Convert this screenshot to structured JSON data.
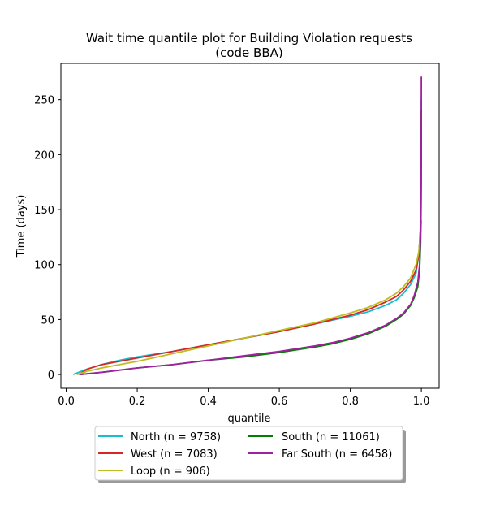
{
  "chart_data": {
    "type": "line",
    "title_line1": "Wait time quantile plot for Building Violation  requests",
    "title_line2": "(code BBA)",
    "xlabel": "quantile",
    "ylabel": "Time (days)",
    "xlim": [
      -0.015,
      1.05
    ],
    "ylim": [
      -12.5,
      283
    ],
    "xticks": [
      0.0,
      0.2,
      0.4,
      0.6,
      0.8,
      1.0
    ],
    "xtick_labels": [
      "0.0",
      "0.2",
      "0.4",
      "0.6",
      "0.8",
      "1.0"
    ],
    "yticks": [
      0,
      50,
      100,
      150,
      200,
      250
    ],
    "ytick_labels": [
      "0",
      "50",
      "100",
      "150",
      "200",
      "250"
    ],
    "grid": false,
    "legend_position": "below-center",
    "series": [
      {
        "name": "North (n = 9758)",
        "color": "#17becf",
        "x": [
          0.02,
          0.05,
          0.1,
          0.15,
          0.2,
          0.3,
          0.4,
          0.5,
          0.6,
          0.7,
          0.8,
          0.85,
          0.9,
          0.93,
          0.95,
          0.97,
          0.985,
          0.993,
          0.997,
          0.999,
          1.0
        ],
        "y": [
          0,
          4,
          9,
          13,
          16,
          21,
          27,
          33,
          39,
          46,
          53,
          57,
          63,
          68,
          74,
          82,
          92,
          110,
          130,
          170,
          250
        ]
      },
      {
        "name": "West (n = 7083)",
        "color": "#d62728",
        "x": [
          0.035,
          0.06,
          0.1,
          0.15,
          0.2,
          0.3,
          0.4,
          0.5,
          0.6,
          0.7,
          0.8,
          0.85,
          0.9,
          0.93,
          0.95,
          0.97,
          0.985,
          0.993,
          0.997,
          0.999,
          1.0
        ],
        "y": [
          0,
          5,
          9,
          12,
          15,
          21,
          27,
          33,
          39,
          46,
          54,
          59,
          66,
          71,
          77,
          85,
          95,
          110,
          130,
          170,
          240
        ]
      },
      {
        "name": "Loop (n = 906)",
        "color": "#bcbd22",
        "x": [
          0.03,
          0.06,
          0.1,
          0.15,
          0.2,
          0.3,
          0.4,
          0.5,
          0.6,
          0.7,
          0.8,
          0.85,
          0.9,
          0.93,
          0.95,
          0.97,
          0.985,
          0.993,
          0.997,
          0.999,
          1.0
        ],
        "y": [
          0,
          3,
          6,
          9,
          12,
          19,
          26,
          33,
          40,
          47,
          56,
          61,
          68,
          74,
          80,
          88,
          100,
          112,
          125,
          135,
          140
        ]
      },
      {
        "name": "South (n = 11061)",
        "color": "#008000",
        "x": [
          0.04,
          0.1,
          0.2,
          0.3,
          0.4,
          0.5,
          0.6,
          0.7,
          0.75,
          0.8,
          0.85,
          0.9,
          0.93,
          0.95,
          0.97,
          0.98,
          0.99,
          0.995,
          0.998,
          0.9995,
          1.0
        ],
        "y": [
          0,
          2,
          6,
          9,
          13,
          16,
          20,
          25,
          28,
          32,
          37,
          44,
          50,
          55,
          63,
          70,
          80,
          95,
          120,
          160,
          240
        ]
      },
      {
        "name": "Far South (n = 6458)",
        "color": "#a020a0",
        "x": [
          0.04,
          0.1,
          0.2,
          0.3,
          0.4,
          0.5,
          0.6,
          0.7,
          0.75,
          0.8,
          0.85,
          0.9,
          0.93,
          0.95,
          0.97,
          0.98,
          0.99,
          0.995,
          0.998,
          0.9995,
          1.0
        ],
        "y": [
          0,
          2,
          6,
          9,
          13,
          17,
          21,
          26,
          29,
          33,
          38,
          45,
          51,
          56,
          64,
          72,
          84,
          100,
          130,
          180,
          271
        ]
      }
    ]
  }
}
